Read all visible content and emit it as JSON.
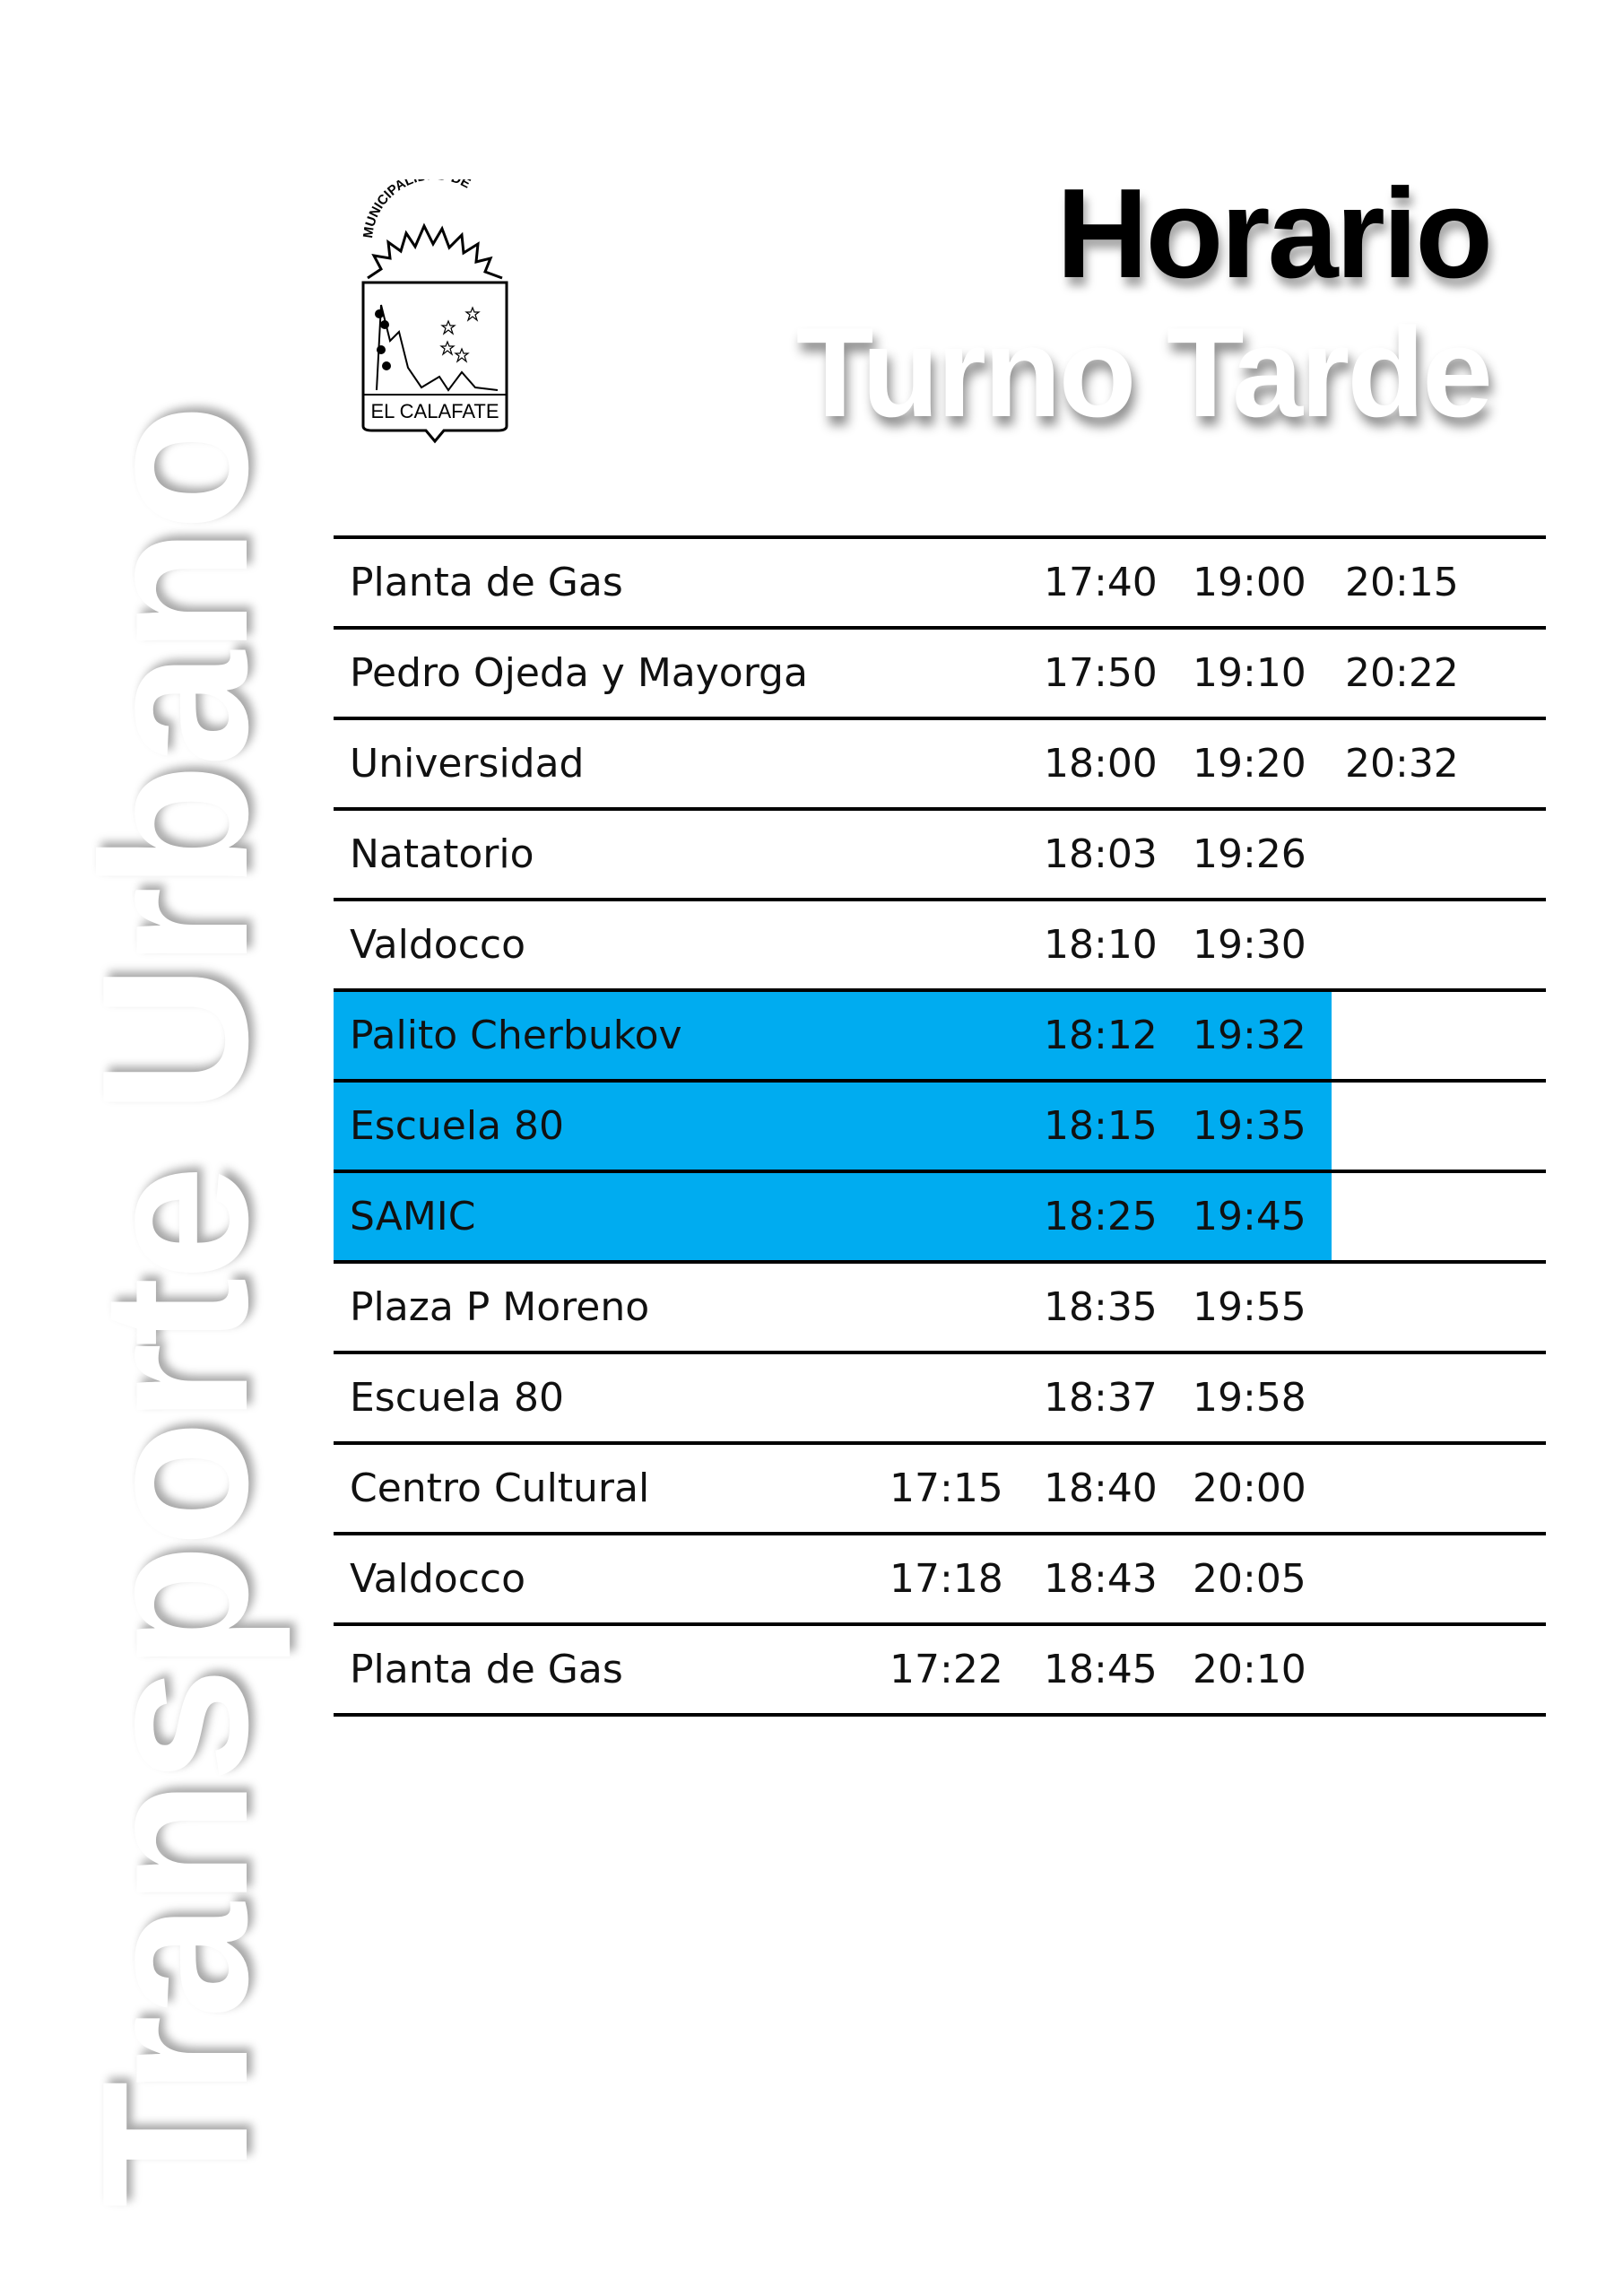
{
  "side_title": "Transporte Urbano",
  "title": {
    "line1": "Horario",
    "line2": "Turno Tarde"
  },
  "logo": {
    "top_text": "MUNICIPALIDAD DE",
    "bottom_text": "EL CALAFATE"
  },
  "colors": {
    "highlight": "#00acf0"
  },
  "rows": [
    {
      "stop": "Planta de Gas",
      "a": "",
      "b": "17:40",
      "c": "19:00",
      "d": "20:15",
      "highlight": false
    },
    {
      "stop": "Pedro Ojeda y Mayorga",
      "a": "",
      "b": "17:50",
      "c": "19:10",
      "d": "20:22",
      "highlight": false
    },
    {
      "stop": "Universidad",
      "a": "",
      "b": "18:00",
      "c": "19:20",
      "d": "20:32",
      "highlight": false
    },
    {
      "stop": "Natatorio",
      "a": "",
      "b": "18:03",
      "c": "19:26",
      "d": "",
      "highlight": false
    },
    {
      "stop": "Valdocco",
      "a": "",
      "b": "18:10",
      "c": "19:30",
      "d": "",
      "highlight": false
    },
    {
      "stop": "Palito Cherbukov",
      "a": "",
      "b": "18:12",
      "c": "19:32",
      "d": "",
      "highlight": true
    },
    {
      "stop": "Escuela 80",
      "a": "",
      "b": "18:15",
      "c": "19:35",
      "d": "",
      "highlight": true
    },
    {
      "stop": "SAMIC",
      "a": "",
      "b": "18:25",
      "c": "19:45",
      "d": "",
      "highlight": true
    },
    {
      "stop": "Plaza P Moreno",
      "a": "",
      "b": "18:35",
      "c": "19:55",
      "d": "",
      "highlight": false
    },
    {
      "stop": "Escuela 80",
      "a": "",
      "b": "18:37",
      "c": "19:58",
      "d": "",
      "highlight": false
    },
    {
      "stop": "Centro Cultural",
      "a": "17:15",
      "b": "18:40",
      "c": "20:00",
      "d": "",
      "highlight": false
    },
    {
      "stop": "Valdocco",
      "a": "17:18",
      "b": "18:43",
      "c": "20:05",
      "d": "",
      "highlight": false
    },
    {
      "stop": "Planta de Gas",
      "a": "17:22",
      "b": "18:45",
      "c": "20:10",
      "d": "",
      "highlight": false
    }
  ]
}
